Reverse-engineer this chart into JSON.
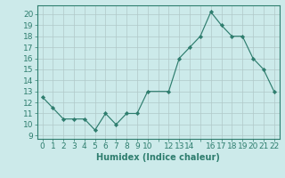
{
  "x": [
    0,
    1,
    2,
    3,
    4,
    5,
    6,
    7,
    8,
    9,
    10,
    12,
    13,
    14,
    15,
    16,
    17,
    18,
    19,
    20,
    21,
    22
  ],
  "y": [
    12.5,
    11.5,
    10.5,
    10.5,
    10.5,
    9.5,
    11.0,
    10.0,
    11.0,
    11.0,
    13.0,
    13.0,
    16.0,
    17.0,
    18.0,
    20.2,
    19.0,
    18.0,
    18.0,
    16.0,
    15.0,
    13.0
  ],
  "xtick_positions": [
    0,
    1,
    2,
    3,
    4,
    5,
    6,
    7,
    8,
    9,
    10,
    11,
    12,
    13,
    14,
    15,
    16,
    17,
    18,
    19,
    20,
    21,
    22
  ],
  "xtick_labels": [
    "0",
    "1",
    "2",
    "3",
    "4",
    "5",
    "6",
    "7",
    "8",
    "9",
    "10",
    "",
    "12",
    "13",
    "14",
    "",
    "16",
    "17",
    "18",
    "19",
    "20",
    "21",
    "22"
  ],
  "yticks": [
    9,
    10,
    11,
    12,
    13,
    14,
    15,
    16,
    17,
    18,
    19,
    20
  ],
  "ylim": [
    8.7,
    20.8
  ],
  "xlim": [
    -0.5,
    22.5
  ],
  "line_color": "#2e7d6e",
  "marker_color": "#2e7d6e",
  "bg_color": "#cceaea",
  "grid_color": "#b0c8c8",
  "xlabel": "Humidex (Indice chaleur)",
  "label_fontsize": 7,
  "tick_fontsize": 6.5
}
